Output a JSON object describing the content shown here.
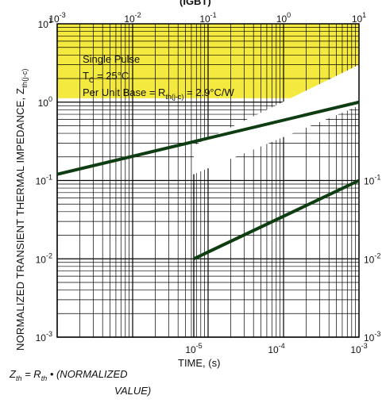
{
  "chart_data": {
    "type": "line",
    "title": "(IGBT)",
    "ylabel_main": "NORMALIZED TRANSIENT THERMAL IMPEDANCE, Z",
    "ylabel_sub": "th(j-c)",
    "xlabel": "TIME, (s)",
    "yscale": "log",
    "ylim": [
      0.001,
      10
    ],
    "y_ticks_left": [
      {
        "base": "10",
        "exp": "-3"
      },
      {
        "base": "10",
        "exp": "-2"
      },
      {
        "base": "10",
        "exp": "-1"
      },
      {
        "base": "10",
        "exp": "0"
      },
      {
        "base": "10",
        "exp": "1"
      }
    ],
    "y_ticks_right": [
      {
        "base": "10",
        "exp": "-3"
      },
      {
        "base": "10",
        "exp": "-2"
      },
      {
        "base": "10",
        "exp": "-1"
      }
    ],
    "x_top_ticks": [
      {
        "base": "10",
        "exp": "-3"
      },
      {
        "base": "10",
        "exp": "-2"
      },
      {
        "base": "10",
        "exp": "-1"
      },
      {
        "base": "10",
        "exp": "0"
      },
      {
        "base": "10",
        "exp": "1"
      }
    ],
    "x_bottom_ticks": [
      {
        "base": "10",
        "exp": "-5"
      },
      {
        "base": "10",
        "exp": "-4"
      },
      {
        "base": "10",
        "exp": "-3"
      }
    ],
    "annotations": {
      "line1": "Single Pulse",
      "line2_pre": "T",
      "line2_sub": "C",
      "line2_post": " = 25°C",
      "line3_pre": "Per Unit Base = R",
      "line3_sub": "th(j-c)",
      "line3_post": " = 2.9°C/W"
    },
    "series": [
      {
        "scale": "top",
        "x": [
          0.001,
          10
        ],
        "y": [
          0.12,
          1.0
        ]
      },
      {
        "scale": "bottom",
        "x": [
          1e-05,
          0.001
        ],
        "y": [
          0.01,
          0.1
        ]
      }
    ],
    "footnote": {
      "line1": "Z",
      "line1_sub": "th",
      "line1_mid": " = R",
      "line1_sub2": "th",
      "line1_post": " • (NORMALIZED",
      "line2": "VALUE)"
    },
    "colors": {
      "line": "#0f3d12",
      "grid": "#000000",
      "band": "#f2e51c"
    }
  }
}
